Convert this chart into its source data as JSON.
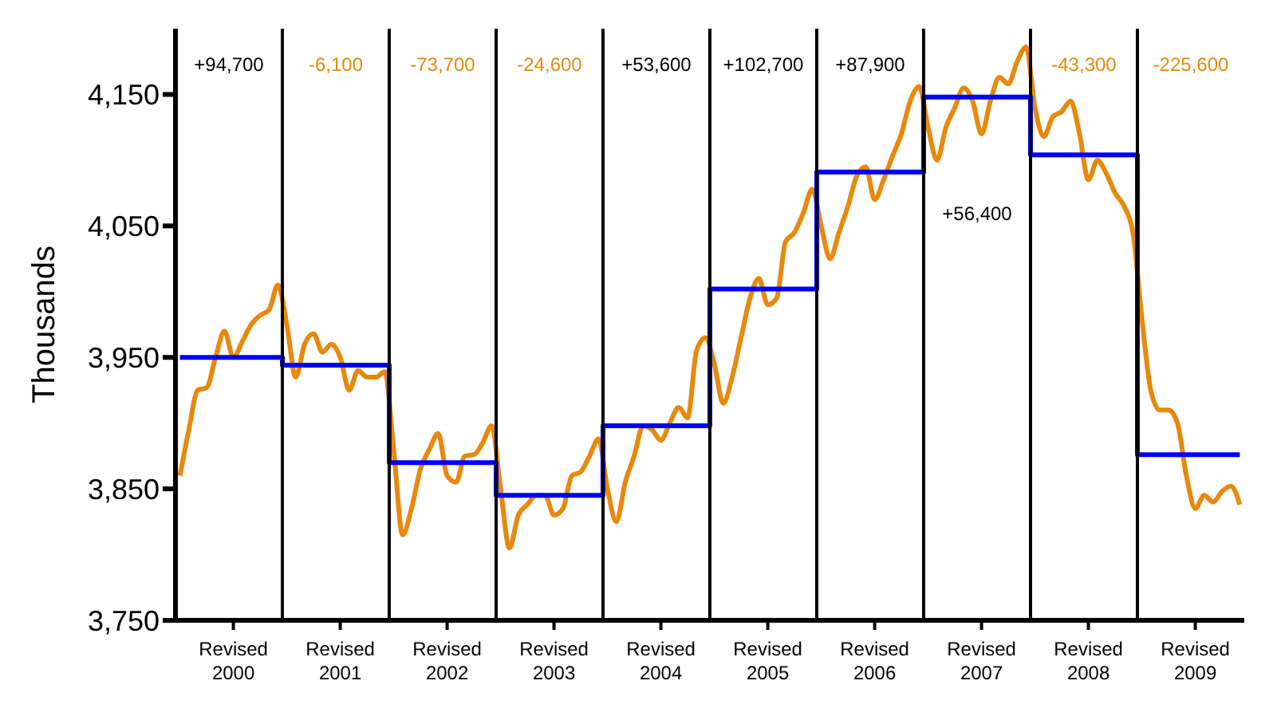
{
  "chart_data": {
    "type": "line",
    "ylabel": "Thousands",
    "ylim": [
      3750,
      4200
    ],
    "yticks": [
      {
        "value": 3750,
        "label": "3,750"
      },
      {
        "value": 3850,
        "label": "3,850"
      },
      {
        "value": 3950,
        "label": "3,950"
      },
      {
        "value": 4050,
        "label": "4,050"
      },
      {
        "value": 4150,
        "label": "4,150"
      }
    ],
    "categories": [
      null,
      null,
      null,
      null,
      null,
      null,
      "Revised\n2000",
      null,
      null,
      null,
      null,
      null,
      null,
      null,
      null,
      null,
      null,
      null,
      "Revised\n2001",
      null,
      null,
      null,
      null,
      null,
      null,
      null,
      null,
      null,
      null,
      null,
      "Revised\n2002",
      null,
      null,
      null,
      null,
      null,
      null,
      null,
      null,
      null,
      null,
      null,
      "Revised\n2003",
      null,
      null,
      null,
      null,
      null,
      null,
      null,
      null,
      null,
      null,
      null,
      "Revised\n2004",
      null,
      null,
      null,
      null,
      null,
      null,
      null,
      null,
      null,
      null,
      null,
      "Revised\n2005",
      null,
      null,
      null,
      null,
      null,
      null,
      null,
      null,
      null,
      null,
      null,
      "Revised\n2006",
      null,
      null,
      null,
      null,
      null,
      null,
      null,
      null,
      null,
      null,
      null,
      "Revised\n2007",
      null,
      null,
      null,
      null,
      null,
      null,
      null,
      null,
      null,
      null,
      null,
      "Revised\n2008",
      null,
      null,
      null,
      null,
      null,
      null,
      null,
      null,
      null,
      null,
      null,
      "Revised\n2009",
      null,
      null,
      null,
      null,
      null
    ],
    "grid": "x",
    "legend": false,
    "marker": "none",
    "line_style": "solid",
    "series": [
      {
        "color": "#e8890c",
        "values": [
          3860,
          3895,
          3925,
          3927,
          3950,
          3970,
          3950,
          3962,
          3975,
          3982,
          3986,
          4005,
          3975,
          3935,
          3960,
          3968,
          3954,
          3960,
          3950,
          3925,
          3940,
          3935,
          3935,
          3939,
          3880,
          3815,
          3835,
          3865,
          3880,
          3892,
          3860,
          3855,
          3875,
          3876,
          3885,
          3898,
          3850,
          3805,
          3830,
          3838,
          3845,
          3845,
          3830,
          3835,
          3860,
          3863,
          3875,
          3888,
          3850,
          3825,
          3855,
          3875,
          3898,
          3895,
          3887,
          3900,
          3912,
          3904,
          3955,
          3965,
          3945,
          3915,
          3935,
          3965,
          3995,
          4010,
          3990,
          3995,
          4038,
          4045,
          4060,
          4078,
          4050,
          4025,
          4045,
          4065,
          4088,
          4095,
          4070,
          4085,
          4103,
          4120,
          4145,
          4156,
          4125,
          4100,
          4125,
          4140,
          4155,
          4145,
          4120,
          4145,
          4163,
          4158,
          4175,
          4186,
          4140,
          4118,
          4133,
          4137,
          4145,
          4120,
          4085,
          4100,
          4090,
          4075,
          4065,
          4045,
          3980,
          3925,
          3910,
          3910,
          3900,
          3860,
          3835,
          3845,
          3840,
          3848,
          3852,
          3838
        ]
      },
      {
        "type": "step",
        "color": "#0000ff",
        "values": [
          3950,
          3950,
          3950,
          3950,
          3950,
          3950,
          3950,
          3950,
          3950,
          3950,
          3950,
          3950,
          3944,
          3944,
          3944,
          3944,
          3944,
          3944,
          3944,
          3944,
          3944,
          3944,
          3944,
          3944,
          3870,
          3870,
          3870,
          3870,
          3870,
          3870,
          3870,
          3870,
          3870,
          3870,
          3870,
          3870,
          3845,
          3845,
          3845,
          3845,
          3845,
          3845,
          3845,
          3845,
          3845,
          3845,
          3845,
          3845,
          3898,
          3898,
          3898,
          3898,
          3898,
          3898,
          3898,
          3898,
          3898,
          3898,
          3898,
          3898,
          4002,
          4002,
          4002,
          4002,
          4002,
          4002,
          4002,
          4002,
          4002,
          4002,
          4002,
          4002,
          4091,
          4091,
          4091,
          4091,
          4091,
          4091,
          4091,
          4091,
          4091,
          4091,
          4091,
          4091,
          4148,
          4148,
          4148,
          4148,
          4148,
          4148,
          4148,
          4148,
          4148,
          4148,
          4148,
          4148,
          4104,
          4104,
          4104,
          4104,
          4104,
          4104,
          4104,
          4104,
          4104,
          4104,
          4104,
          4104,
          3876,
          3876,
          3876,
          3876,
          3876,
          3876,
          3876,
          3876,
          3876,
          3876,
          3876,
          3876
        ]
      }
    ],
    "annotations": [
      "+94,700",
      "-6,100",
      "-73,700",
      "-24,600",
      "+53,600",
      "+102,700",
      "+87,900",
      "+56,400",
      "-43,300",
      "-225,600"
    ]
  }
}
